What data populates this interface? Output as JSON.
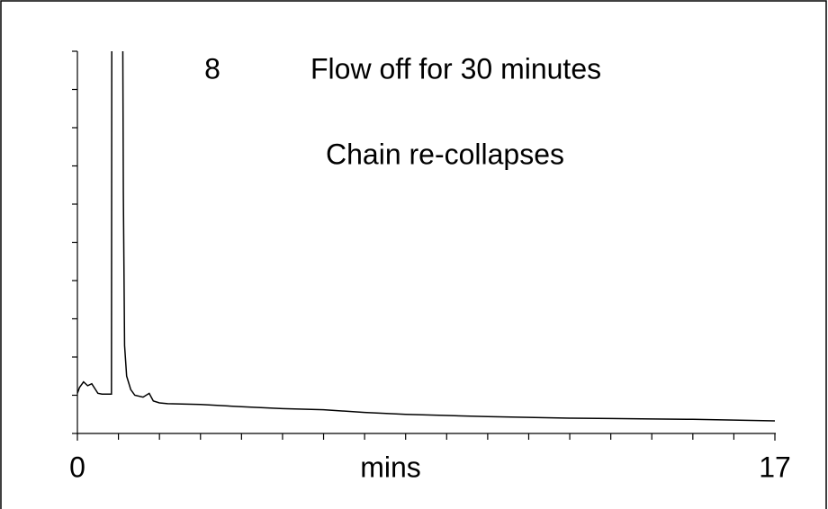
{
  "chart_data": {
    "type": "line",
    "title": "Flow off for 30 minutes",
    "subtitle": "Chain re-collapses",
    "annotations": [
      "8"
    ],
    "x_label": "mins",
    "x": [
      0,
      0.05,
      0.15,
      0.25,
      0.35,
      0.5,
      0.6,
      0.83,
      0.84,
      1.1,
      1.12,
      1.15,
      1.2,
      1.3,
      1.4,
      1.6,
      1.75,
      1.85,
      2.0,
      2.2,
      3,
      4,
      5,
      6,
      7,
      8,
      9,
      10,
      11,
      12,
      13,
      14,
      15,
      16,
      17
    ],
    "values": [
      1.05,
      1.2,
      1.35,
      1.25,
      1.3,
      1.05,
      1.03,
      1.03,
      12,
      12,
      6.3,
      2.3,
      1.5,
      1.15,
      1.0,
      0.95,
      1.05,
      0.85,
      0.8,
      0.78,
      0.76,
      0.7,
      0.65,
      0.62,
      0.55,
      0.5,
      0.47,
      0.44,
      0.42,
      0.4,
      0.39,
      0.38,
      0.37,
      0.35,
      0.33
    ],
    "color": "#000000",
    "xlim": [
      0,
      17
    ],
    "xticks": [
      0,
      17
    ],
    "x_minor_ticks": [
      1,
      2,
      3,
      4,
      5,
      6,
      7,
      8,
      9,
      10,
      11,
      12,
      13,
      14,
      15,
      16
    ],
    "ylim": [
      0,
      10
    ],
    "y_minor_ticks": [
      0,
      1,
      2,
      3,
      4,
      5,
      6,
      7,
      8,
      9,
      10
    ]
  }
}
